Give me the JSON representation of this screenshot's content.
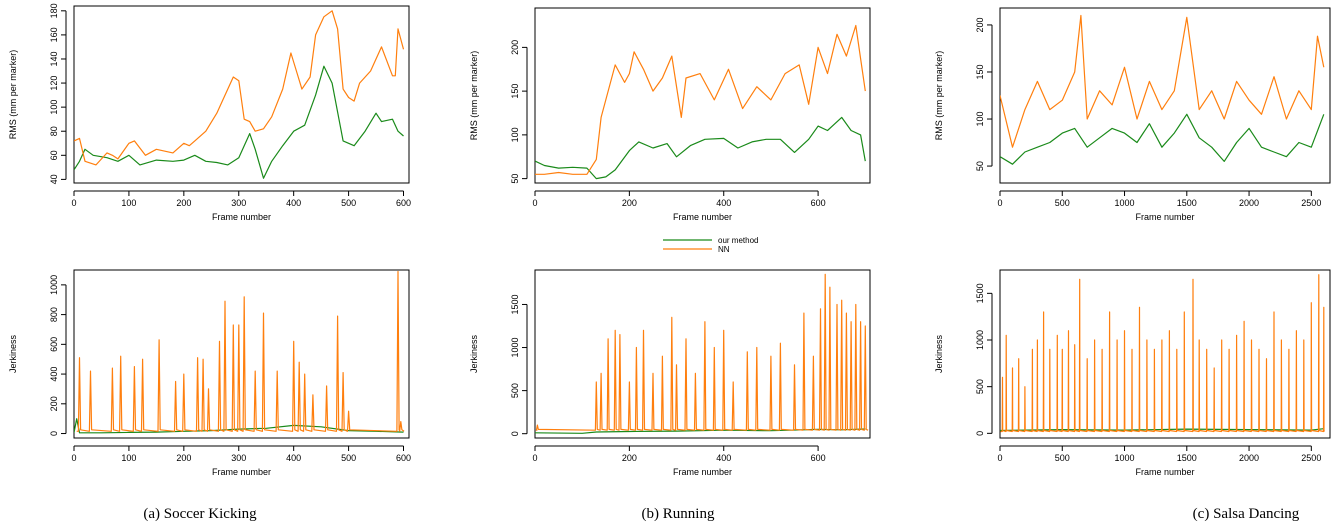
{
  "colors": {
    "our_method": "#1a8a1a",
    "nn": "#ff7f0e"
  },
  "legend": {
    "items": [
      {
        "label": "our method",
        "color": "#1a8a1a"
      },
      {
        "label": "NN",
        "color": "#ff7f0e"
      }
    ]
  },
  "captions": [
    "(a) Soccer Kicking",
    "(b) Running",
    "(c) Salsa Dancing"
  ],
  "chart_data": [
    {
      "type": "line",
      "panel": "a-top",
      "xlabel": "Frame number",
      "ylabel": "RMS (mm per marker)",
      "xlim": [
        0,
        610
      ],
      "ylim": [
        37,
        184
      ],
      "xticks": [
        0,
        100,
        200,
        300,
        400,
        500,
        600
      ],
      "yticks": [
        40,
        60,
        80,
        100,
        120,
        140,
        160,
        180
      ],
      "series": [
        {
          "name": "our method",
          "color": "#1a8a1a",
          "x": [
            0,
            10,
            20,
            35,
            60,
            80,
            100,
            120,
            150,
            180,
            200,
            220,
            240,
            260,
            280,
            300,
            320,
            330,
            345,
            360,
            380,
            400,
            420,
            440,
            455,
            470,
            490,
            510,
            530,
            550,
            560,
            580,
            590,
            600
          ],
          "y": [
            48,
            55,
            65,
            60,
            58,
            55,
            60,
            52,
            56,
            55,
            56,
            60,
            55,
            54,
            52,
            58,
            78,
            65,
            41,
            55,
            68,
            80,
            85,
            110,
            134,
            120,
            72,
            68,
            80,
            95,
            88,
            90,
            80,
            76
          ]
        },
        {
          "name": "NN",
          "color": "#ff7f0e",
          "x": [
            0,
            10,
            20,
            40,
            60,
            70,
            80,
            100,
            110,
            130,
            150,
            180,
            200,
            210,
            220,
            240,
            260,
            270,
            290,
            300,
            310,
            320,
            330,
            345,
            360,
            380,
            395,
            405,
            415,
            430,
            440,
            455,
            470,
            480,
            490,
            500,
            510,
            520,
            540,
            560,
            580,
            585,
            590,
            600
          ],
          "y": [
            72,
            74,
            55,
            52,
            62,
            60,
            57,
            70,
            72,
            60,
            65,
            62,
            70,
            68,
            72,
            80,
            95,
            105,
            125,
            122,
            90,
            88,
            80,
            82,
            92,
            115,
            145,
            130,
            115,
            125,
            160,
            175,
            180,
            165,
            115,
            108,
            105,
            120,
            130,
            150,
            126,
            126,
            165,
            148
          ]
        }
      ]
    },
    {
      "type": "line",
      "panel": "b-top",
      "xlabel": "Frame number",
      "ylabel": "RMS (mm per marker)",
      "xlim": [
        0,
        710
      ],
      "ylim": [
        45,
        245
      ],
      "xticks": [
        0,
        200,
        400,
        600
      ],
      "yticks": [
        50,
        100,
        150,
        200
      ],
      "series": [
        {
          "name": "our method",
          "color": "#1a8a1a",
          "x": [
            0,
            20,
            50,
            80,
            110,
            130,
            150,
            170,
            200,
            220,
            250,
            280,
            300,
            330,
            360,
            400,
            430,
            460,
            490,
            520,
            550,
            580,
            600,
            620,
            650,
            670,
            690,
            700
          ],
          "y": [
            70,
            65,
            62,
            63,
            62,
            50,
            52,
            60,
            82,
            92,
            85,
            90,
            75,
            88,
            95,
            96,
            85,
            92,
            95,
            95,
            80,
            95,
            110,
            105,
            120,
            105,
            100,
            70
          ]
        },
        {
          "name": "NN",
          "color": "#ff7f0e",
          "x": [
            0,
            20,
            50,
            80,
            110,
            130,
            140,
            150,
            170,
            190,
            200,
            210,
            230,
            250,
            270,
            290,
            310,
            320,
            350,
            380,
            410,
            440,
            470,
            500,
            530,
            560,
            580,
            600,
            620,
            640,
            660,
            680,
            700
          ],
          "y": [
            55,
            55,
            57,
            55,
            55,
            72,
            120,
            140,
            180,
            160,
            170,
            195,
            175,
            150,
            165,
            190,
            120,
            165,
            170,
            140,
            175,
            130,
            155,
            140,
            170,
            180,
            135,
            200,
            170,
            215,
            190,
            225,
            150
          ]
        }
      ]
    },
    {
      "type": "line",
      "panel": "c-top",
      "xlabel": "Frame number",
      "ylabel": "RMS (mm per marker)",
      "xlim": [
        0,
        2650
      ],
      "ylim": [
        32,
        218
      ],
      "xticks": [
        0,
        500,
        1000,
        1500,
        2000,
        2500
      ],
      "yticks": [
        50,
        100,
        150,
        200
      ],
      "series": [
        {
          "name": "our method",
          "color": "#1a8a1a",
          "x": [
            0,
            100,
            200,
            300,
            400,
            500,
            600,
            700,
            800,
            900,
            1000,
            1100,
            1200,
            1300,
            1400,
            1500,
            1600,
            1700,
            1800,
            1900,
            2000,
            2100,
            2200,
            2300,
            2400,
            2500,
            2600
          ],
          "y": [
            60,
            52,
            65,
            70,
            75,
            85,
            90,
            70,
            80,
            90,
            85,
            75,
            95,
            70,
            85,
            105,
            80,
            70,
            55,
            75,
            90,
            70,
            65,
            60,
            75,
            70,
            105
          ]
        },
        {
          "name": "NN",
          "color": "#ff7f0e",
          "x": [
            0,
            100,
            200,
            300,
            400,
            500,
            600,
            650,
            700,
            800,
            900,
            1000,
            1100,
            1200,
            1300,
            1400,
            1500,
            1600,
            1700,
            1800,
            1900,
            2000,
            2100,
            2200,
            2300,
            2400,
            2500,
            2550,
            2600
          ],
          "y": [
            125,
            70,
            110,
            140,
            110,
            120,
            150,
            210,
            100,
            130,
            115,
            155,
            100,
            140,
            110,
            130,
            208,
            110,
            130,
            100,
            140,
            120,
            105,
            145,
            100,
            130,
            110,
            188,
            155
          ]
        }
      ]
    },
    {
      "type": "line",
      "panel": "a-bottom",
      "xlabel": "Frame number",
      "ylabel": "Jerkiness",
      "xlim": [
        0,
        610
      ],
      "ylim": [
        -30,
        1100
      ],
      "xticks": [
        0,
        100,
        200,
        300,
        400,
        500,
        600
      ],
      "yticks": [
        0,
        200,
        400,
        600,
        800,
        1000
      ],
      "series": [
        {
          "name": "our method",
          "color": "#1a8a1a",
          "x": [
            0,
            5,
            10,
            50,
            100,
            150,
            200,
            250,
            300,
            350,
            400,
            450,
            500,
            550,
            600
          ],
          "y": [
            5,
            100,
            5,
            5,
            8,
            10,
            15,
            20,
            30,
            35,
            55,
            45,
            20,
            15,
            10
          ]
        },
        {
          "name": "NN",
          "color": "#ff7f0e",
          "spikes": [
            [
              10,
              510
            ],
            [
              30,
              420
            ],
            [
              70,
              440
            ],
            [
              85,
              520
            ],
            [
              110,
              450
            ],
            [
              125,
              500
            ],
            [
              155,
              630
            ],
            [
              185,
              350
            ],
            [
              200,
              400
            ],
            [
              225,
              510
            ],
            [
              235,
              500
            ],
            [
              245,
              300
            ],
            [
              265,
              620
            ],
            [
              275,
              890
            ],
            [
              290,
              730
            ],
            [
              300,
              730
            ],
            [
              310,
              920
            ],
            [
              330,
              420
            ],
            [
              345,
              810
            ],
            [
              370,
              420
            ],
            [
              400,
              620
            ],
            [
              410,
              480
            ],
            [
              420,
              400
            ],
            [
              435,
              260
            ],
            [
              460,
              320
            ],
            [
              480,
              790
            ],
            [
              490,
              410
            ],
            [
              500,
              150
            ],
            [
              590,
              1090
            ],
            [
              595,
              80
            ]
          ],
          "baseline": 15
        }
      ]
    },
    {
      "type": "line",
      "panel": "b-bottom",
      "xlabel": "Frame number",
      "ylabel": "Jerkiness",
      "xlim": [
        0,
        710
      ],
      "ylim": [
        -50,
        1900
      ],
      "xticks": [
        0,
        200,
        400,
        600
      ],
      "yticks": [
        0,
        500,
        1000,
        1500
      ],
      "series": [
        {
          "name": "our method",
          "color": "#1a8a1a",
          "x": [
            0,
            100,
            130,
            200,
            300,
            400,
            500,
            600,
            650,
            700
          ],
          "y": [
            10,
            5,
            20,
            25,
            30,
            40,
            35,
            50,
            45,
            55
          ]
        },
        {
          "name": "NN",
          "color": "#ff7f0e",
          "spikes": [
            [
              5,
              100
            ],
            [
              130,
              600
            ],
            [
              140,
              700
            ],
            [
              155,
              1100
            ],
            [
              170,
              1200
            ],
            [
              180,
              1150
            ],
            [
              200,
              600
            ],
            [
              215,
              1000
            ],
            [
              230,
              1200
            ],
            [
              250,
              700
            ],
            [
              270,
              900
            ],
            [
              290,
              1350
            ],
            [
              300,
              800
            ],
            [
              320,
              1100
            ],
            [
              340,
              700
            ],
            [
              360,
              1300
            ],
            [
              380,
              1000
            ],
            [
              400,
              1200
            ],
            [
              420,
              600
            ],
            [
              450,
              950
            ],
            [
              470,
              1000
            ],
            [
              500,
              900
            ],
            [
              520,
              1050
            ],
            [
              550,
              800
            ],
            [
              570,
              1400
            ],
            [
              590,
              900
            ],
            [
              605,
              1450
            ],
            [
              615,
              1850
            ],
            [
              625,
              1700
            ],
            [
              640,
              1500
            ],
            [
              650,
              1550
            ],
            [
              660,
              1400
            ],
            [
              670,
              1300
            ],
            [
              680,
              1500
            ],
            [
              690,
              1300
            ],
            [
              700,
              1250
            ]
          ],
          "baseline": 40
        }
      ]
    },
    {
      "type": "line",
      "panel": "c-bottom",
      "xlabel": "Frame number",
      "ylabel": "Jerkiness",
      "xlim": [
        0,
        2650
      ],
      "ylim": [
        -50,
        1750
      ],
      "xticks": [
        0,
        500,
        1000,
        1500,
        2000,
        2500
      ],
      "yticks": [
        0,
        500,
        1000,
        1500
      ],
      "series": [
        {
          "name": "our method",
          "color": "#1a8a1a",
          "x": [
            0,
            500,
            1000,
            1500,
            2000,
            2500,
            2600
          ],
          "y": [
            30,
            40,
            35,
            45,
            40,
            35,
            50
          ]
        },
        {
          "name": "NN",
          "color": "#ff7f0e",
          "spikes": [
            [
              20,
              600
            ],
            [
              50,
              1050
            ],
            [
              100,
              700
            ],
            [
              150,
              800
            ],
            [
              200,
              500
            ],
            [
              260,
              900
            ],
            [
              300,
              1000
            ],
            [
              350,
              1300
            ],
            [
              400,
              900
            ],
            [
              460,
              1050
            ],
            [
              500,
              900
            ],
            [
              550,
              1100
            ],
            [
              600,
              950
            ],
            [
              640,
              1650
            ],
            [
              700,
              800
            ],
            [
              760,
              1000
            ],
            [
              820,
              900
            ],
            [
              880,
              1300
            ],
            [
              940,
              1000
            ],
            [
              1000,
              1100
            ],
            [
              1060,
              900
            ],
            [
              1120,
              1350
            ],
            [
              1180,
              1000
            ],
            [
              1240,
              900
            ],
            [
              1300,
              1000
            ],
            [
              1360,
              1100
            ],
            [
              1420,
              900
            ],
            [
              1480,
              1300
            ],
            [
              1550,
              1650
            ],
            [
              1600,
              1000
            ],
            [
              1660,
              900
            ],
            [
              1720,
              700
            ],
            [
              1780,
              1000
            ],
            [
              1840,
              900
            ],
            [
              1900,
              1050
            ],
            [
              1960,
              1200
            ],
            [
              2020,
              1000
            ],
            [
              2080,
              900
            ],
            [
              2140,
              800
            ],
            [
              2200,
              1300
            ],
            [
              2260,
              1000
            ],
            [
              2320,
              900
            ],
            [
              2380,
              1100
            ],
            [
              2440,
              1000
            ],
            [
              2500,
              1400
            ],
            [
              2560,
              1700
            ],
            [
              2600,
              1350
            ]
          ],
          "baseline": 20
        }
      ]
    }
  ]
}
